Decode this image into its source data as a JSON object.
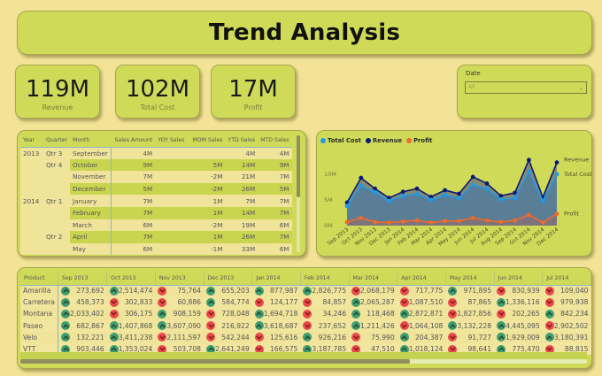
{
  "header": {
    "title": "Trend Analysis"
  },
  "kpis": [
    {
      "value": "119M",
      "label": "Revenue"
    },
    {
      "value": "102M",
      "label": "Total Cost"
    },
    {
      "value": "17M",
      "label": "Profit"
    }
  ],
  "slicer": {
    "label": "Date",
    "selected": "All",
    "chevron": "⌄"
  },
  "sales_matrix": {
    "columns": [
      "Year",
      "Quarter",
      "Month",
      "Sales Amount",
      "YOY Sales",
      "MOM Sales",
      "YTD Sales",
      "MTD Sales"
    ],
    "rows": [
      {
        "year": "2013",
        "quarter": "Qtr 3",
        "month": "September",
        "sales": "4M",
        "yoy": "",
        "mom": "",
        "ytd": "4M",
        "mtd": "4M"
      },
      {
        "year": "",
        "quarter": "Qtr 4",
        "month": "October",
        "sales": "9M",
        "yoy": "",
        "mom": "5M",
        "ytd": "14M",
        "mtd": "9M"
      },
      {
        "year": "",
        "quarter": "",
        "month": "November",
        "sales": "7M",
        "yoy": "",
        "mom": "-2M",
        "ytd": "21M",
        "mtd": "7M"
      },
      {
        "year": "",
        "quarter": "",
        "month": "December",
        "sales": "5M",
        "yoy": "",
        "mom": "-2M",
        "ytd": "26M",
        "mtd": "5M"
      },
      {
        "year": "2014",
        "quarter": "Qtr 1",
        "month": "January",
        "sales": "7M",
        "yoy": "",
        "mom": "1M",
        "ytd": "7M",
        "mtd": "7M"
      },
      {
        "year": "",
        "quarter": "",
        "month": "February",
        "sales": "7M",
        "yoy": "",
        "mom": "1M",
        "ytd": "14M",
        "mtd": "7M"
      },
      {
        "year": "",
        "quarter": "",
        "month": "March",
        "sales": "6M",
        "yoy": "",
        "mom": "-2M",
        "ytd": "19M",
        "mtd": "6M"
      },
      {
        "year": "",
        "quarter": "Qtr 2",
        "month": "April",
        "sales": "7M",
        "yoy": "",
        "mom": "1M",
        "ytd": "26M",
        "mtd": "7M"
      },
      {
        "year": "",
        "quarter": "",
        "month": "May",
        "sales": "6M",
        "yoy": "",
        "mom": "-1M",
        "ytd": "33M",
        "mtd": "6M"
      }
    ]
  },
  "chart_data": {
    "type": "area",
    "title": "",
    "xlabel": "",
    "ylabel": "",
    "categories": [
      "Sep 2013",
      "Oct 2013",
      "Nov 2013",
      "Dec 2013",
      "Jan 2014",
      "Feb 2014",
      "Mar 2014",
      "Apr 2014",
      "May 2014",
      "Jun 2014",
      "Jul 2014",
      "Aug 2014",
      "Sep 2014",
      "Oct 2014",
      "Nov 2014",
      "Dec 2014"
    ],
    "series": [
      {
        "name": "Total Cost",
        "color": "#1e9bea",
        "values": [
          3.8,
          7.8,
          6.5,
          4.8,
          5.8,
          6.2,
          5.0,
          6.0,
          5.3,
          8.0,
          7.2,
          5.1,
          5.4,
          10.6,
          4.8,
          10.0
        ]
      },
      {
        "name": "Revenue",
        "color": "#0b1a78",
        "values": [
          4.5,
          9.3,
          7.2,
          5.4,
          6.6,
          7.2,
          5.6,
          6.9,
          6.2,
          9.5,
          8.2,
          5.8,
          6.4,
          12.8,
          5.5,
          12.3
        ]
      },
      {
        "name": "Profit",
        "color": "#f06a2a",
        "values": [
          0.7,
          1.5,
          0.7,
          0.6,
          0.8,
          1.0,
          0.6,
          0.9,
          0.9,
          1.5,
          1.0,
          0.7,
          1.0,
          2.1,
          0.6,
          2.3
        ]
      }
    ],
    "yticks": [
      "0M",
      "5M",
      "10M"
    ],
    "ylim": [
      0,
      14
    ],
    "end_labels": [
      "Revenue",
      "Total Cost",
      "Profit"
    ],
    "legend_position": "top-left",
    "grid": false
  },
  "product_matrix": {
    "columns": [
      "Product",
      "Sep 2013",
      "Oct 2013",
      "Nov 2013",
      "Dec 2013",
      "Jan 2014",
      "Feb 2014",
      "Mar 2014",
      "Apr 2014",
      "May 2014",
      "Jun 2014",
      "Jul 2014"
    ],
    "rows": [
      {
        "product": "Amarilla",
        "cells": [
          [
            "up",
            "273,692"
          ],
          [
            "up",
            "2,514,474"
          ],
          [
            "down",
            "75,764"
          ],
          [
            "up",
            "655,203"
          ],
          [
            "up",
            "877,987"
          ],
          [
            "up",
            "2,826,775"
          ],
          [
            "down",
            "2,068,179"
          ],
          [
            "down",
            "717,775"
          ],
          [
            "up",
            "971,895"
          ],
          [
            "down",
            "830,939"
          ],
          [
            "down",
            "109,040"
          ]
        ]
      },
      {
        "product": "Carretera",
        "cells": [
          [
            "up",
            "458,373"
          ],
          [
            "down",
            "302,833"
          ],
          [
            "down",
            "60,886"
          ],
          [
            "up",
            "584,774"
          ],
          [
            "down",
            "124,177"
          ],
          [
            "down",
            "84,857"
          ],
          [
            "up",
            "2,065,287"
          ],
          [
            "down",
            "1,087,510"
          ],
          [
            "down",
            "87,865"
          ],
          [
            "up",
            "1,336,116"
          ],
          [
            "down",
            "979,938"
          ]
        ]
      },
      {
        "product": "Montana",
        "cells": [
          [
            "up",
            "2,033,402"
          ],
          [
            "down",
            "306,175"
          ],
          [
            "up",
            "908,159"
          ],
          [
            "down",
            "728,048"
          ],
          [
            "up",
            "1,694,718"
          ],
          [
            "down",
            "34,246"
          ],
          [
            "up",
            "118,468"
          ],
          [
            "up",
            "2,872,871"
          ],
          [
            "down",
            "1,827,856"
          ],
          [
            "down",
            "202,265"
          ],
          [
            "up",
            "842,234"
          ]
        ]
      },
      {
        "product": "Paseo",
        "cells": [
          [
            "up",
            "682,867"
          ],
          [
            "up",
            "1,407,868"
          ],
          [
            "up",
            "3,607,090"
          ],
          [
            "down",
            "216,922"
          ],
          [
            "up",
            "3,618,687"
          ],
          [
            "down",
            "237,652"
          ],
          [
            "up",
            "1,211,426"
          ],
          [
            "down",
            "1,064,108"
          ],
          [
            "up",
            "3,132,228"
          ],
          [
            "up",
            "4,445,095"
          ],
          [
            "down",
            "2,902,502"
          ]
        ]
      },
      {
        "product": "Velo",
        "cells": [
          [
            "up",
            "132,221"
          ],
          [
            "up",
            "3,411,238"
          ],
          [
            "down",
            "2,111,597"
          ],
          [
            "down",
            "542,244"
          ],
          [
            "down",
            "125,616"
          ],
          [
            "up",
            "926,216"
          ],
          [
            "down",
            "75,990"
          ],
          [
            "up",
            "204,387"
          ],
          [
            "down",
            "91,727"
          ],
          [
            "up",
            "1,929,009"
          ],
          [
            "up",
            "3,180,391"
          ]
        ]
      },
      {
        "product": "VTT",
        "cells": [
          [
            "up",
            "903,446"
          ],
          [
            "up",
            "1,353,024"
          ],
          [
            "down",
            "503,708"
          ],
          [
            "up",
            "2,641,249"
          ],
          [
            "down",
            "166,575"
          ],
          [
            "up",
            "3,187,785"
          ],
          [
            "down",
            "47,510"
          ],
          [
            "up",
            "1,018,124"
          ],
          [
            "down",
            "98,641"
          ],
          [
            "up",
            "775,470"
          ],
          [
            "down",
            "88,815"
          ]
        ]
      }
    ]
  },
  "colors": {
    "background": "#f2e396",
    "panel": "#cfdb58",
    "up": "#3f9d6e",
    "down": "#e94a4a"
  }
}
